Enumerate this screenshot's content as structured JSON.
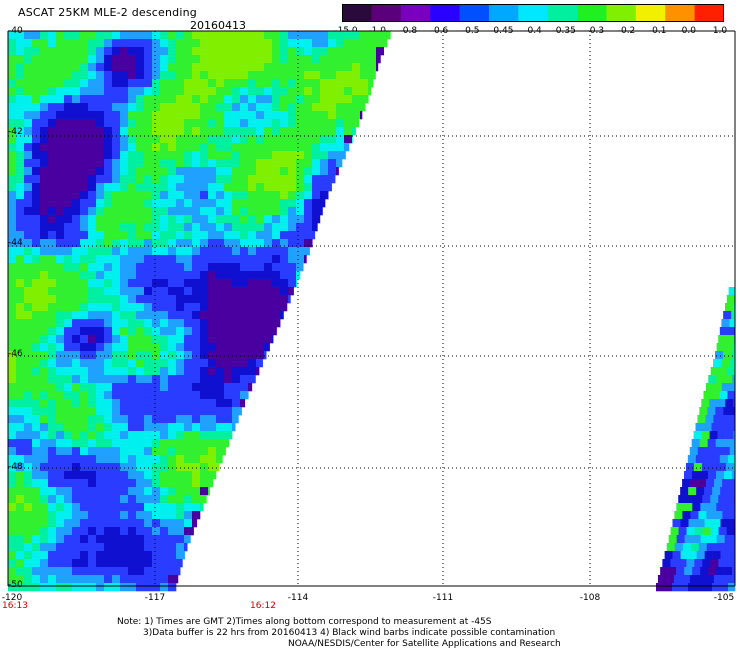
{
  "header": {
    "title": "ASCAT 25KM MLE-2 descending",
    "date": "20160413"
  },
  "colorbar": {
    "labels": [
      "-15.0",
      "-1.0",
      "-0.8",
      "-0.6",
      "-0.5",
      "-0.45",
      "-0.4",
      "-0.35",
      "-0.3",
      "-0.2",
      "-0.1",
      "0.0",
      "1.0"
    ],
    "colors": [
      "#2a0a3a",
      "#5a007a",
      "#7a00c0",
      "#2a00ff",
      "#0050ff",
      "#00a8ff",
      "#00e8ff",
      "#00f0a0",
      "#20f020",
      "#80f000",
      "#f0f000",
      "#ff9000",
      "#ff2000"
    ]
  },
  "axes": {
    "lat_labels": [
      "-40",
      "-42",
      "-44",
      "-46",
      "-48",
      "-50"
    ],
    "lon_labels": [
      "-120",
      "-117",
      "-114",
      "-111",
      "-108",
      "-105"
    ],
    "lat_range": [
      -50,
      -40
    ],
    "lon_range": [
      -120,
      -105
    ]
  },
  "times": {
    "left": "16:13",
    "mid": "16:12"
  },
  "footer": {
    "line1": "Note: 1) Times are GMT 2)Times along bottom correspond to measurement at -45S",
    "line2": "3)Data buffer is 22 hrs from 20160413 4) Black wind barbs indicate possible contamination",
    "line3": "NOAA/NESDIS/Center for Satellite Applications and Research"
  },
  "swath_colors": {
    "blue": "#2a3cff",
    "deep_blue": "#1010d0",
    "purple": "#4a00a0",
    "light_blue": "#20a0ff",
    "cyan": "#00f0f0",
    "teal": "#00f0a0",
    "green": "#30f030",
    "yellow_green": "#80f000"
  }
}
